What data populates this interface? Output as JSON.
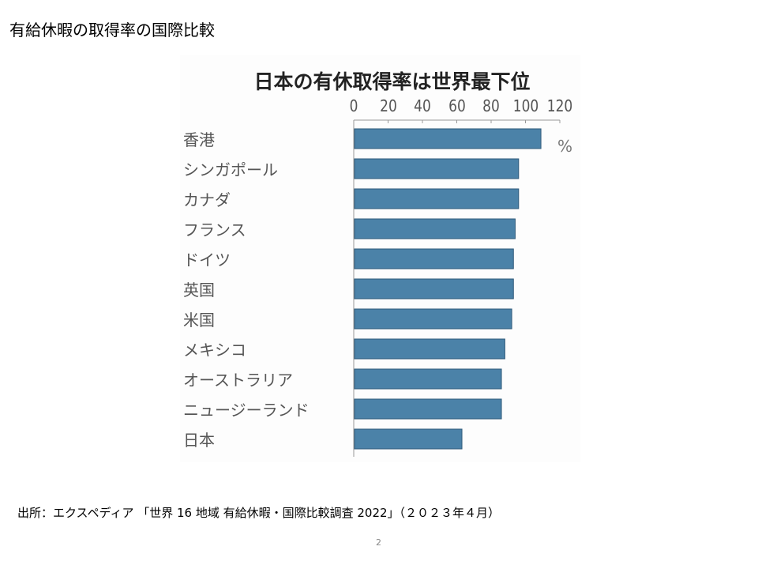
{
  "slide": {
    "title": "有給休暇の取得率の国際比較",
    "source": "出所：エクスペディア 「世界 16 地域 有給休暇・国際比較調査 2022」（２０２３年４月）",
    "page_number": "2"
  },
  "chart_data": {
    "type": "bar",
    "orientation": "horizontal",
    "title": "日本の有休取得率は世界最下位",
    "unit": "%",
    "categories": [
      "香港",
      "シンガポール",
      "カナダ",
      "フランス",
      "ドイツ",
      "英国",
      "米国",
      "メキシコ",
      "オーストラリア",
      "ニュージーランド",
      "日本"
    ],
    "values": [
      109,
      96,
      96,
      94,
      93,
      93,
      92,
      88,
      86,
      86,
      63
    ],
    "xlim": [
      0,
      120
    ],
    "xticks": [
      "0",
      "20",
      "40",
      "60",
      "80",
      "100",
      "120"
    ],
    "axis_position": "top",
    "grid": false,
    "bar_color": "#4b82a8"
  }
}
